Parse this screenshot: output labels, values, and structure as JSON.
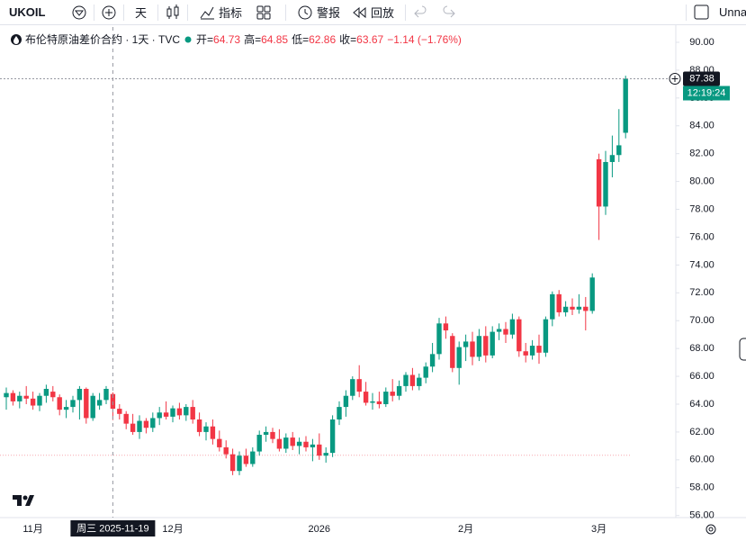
{
  "toolbar": {
    "symbol": "UKOIL",
    "interval": "天",
    "indicators": "指标",
    "alerts": "警报",
    "replay": "回放",
    "layout_name": "Unnamed"
  },
  "chart_data": {
    "type": "candlestick",
    "title": "布伦特原油差价合约 · 1天 · TVC",
    "ohlc_labels": [
      "开=",
      "高=",
      "低=",
      "收="
    ],
    "change_label": "−1.14 (−1.76%)",
    "up_color": "#089981",
    "down_color": "#f23645",
    "categories": [
      null,
      null,
      null,
      null,
      "11月",
      null,
      null,
      null,
      null,
      null,
      null,
      null,
      null,
      null,
      null,
      null,
      null,
      null,
      null,
      null,
      null,
      null,
      null,
      null,
      null,
      "12月",
      null,
      null,
      null,
      null,
      null,
      null,
      null,
      null,
      null,
      null,
      null,
      null,
      null,
      null,
      null,
      null,
      null,
      null,
      null,
      null,
      null,
      "2026",
      null,
      null,
      null,
      null,
      null,
      null,
      null,
      null,
      null,
      null,
      null,
      null,
      null,
      null,
      null,
      null,
      null,
      null,
      null,
      null,
      null,
      "2月",
      null,
      null,
      null,
      null,
      null,
      null,
      null,
      null,
      null,
      null,
      null,
      null,
      null,
      null,
      null,
      null,
      null,
      null,
      null,
      "3月",
      null,
      null,
      null,
      null
    ],
    "open": [
      64.5,
      64.8,
      64.2,
      64.6,
      64.4,
      63.9,
      64.6,
      64.9,
      64.5,
      63.6,
      63.8,
      64.3,
      65.1,
      63.0,
      63.9,
      64.3,
      64.73,
      63.67,
      63.3,
      62.6,
      62.0,
      62.8,
      62.3,
      63.0,
      63.4,
      63.1,
      63.7,
      63.2,
      63.8,
      62.9,
      62.0,
      62.4,
      61.5,
      60.9,
      60.4,
      59.2,
      60.3,
      59.7,
      60.6,
      61.8,
      62.0,
      61.5,
      60.8,
      61.6,
      61.0,
      61.3,
      60.9,
      61.1,
      60.3,
      60.5,
      62.9,
      63.8,
      64.6,
      65.8,
      64.9,
      64.1,
      64.2,
      64.0,
      64.9,
      64.6,
      65.3,
      66.1,
      65.3,
      65.9,
      66.7,
      67.6,
      69.8,
      68.9,
      66.6,
      68.1,
      68.5,
      67.4,
      68.9,
      67.5,
      69.2,
      69.4,
      69.0,
      70.1,
      67.8,
      67.5,
      68.2,
      67.7,
      70.1,
      71.9,
      70.6,
      71.0,
      70.8,
      71.0,
      70.7,
      81.6,
      78.2,
      81.4,
      81.9,
      83.5
    ],
    "high": [
      65.2,
      65.0,
      64.9,
      65.3,
      64.9,
      64.8,
      65.4,
      65.3,
      64.7,
      64.3,
      64.6,
      65.3,
      65.2,
      64.8,
      64.8,
      65.3,
      64.85,
      64.0,
      63.5,
      63.3,
      63.2,
      63.0,
      63.4,
      63.8,
      64.2,
      63.9,
      64.1,
      64.0,
      64.3,
      63.4,
      62.7,
      62.9,
      62.1,
      61.4,
      60.8,
      60.6,
      60.8,
      60.9,
      62.1,
      62.4,
      62.3,
      62.2,
      61.9,
      62.0,
      61.6,
      61.7,
      61.5,
      61.9,
      60.9,
      63.2,
      64.2,
      65.0,
      66.0,
      66.8,
      65.6,
      64.8,
      64.9,
      65.2,
      65.8,
      65.7,
      66.3,
      66.6,
      66.2,
      67.0,
      68.4,
      70.2,
      70.3,
      69.1,
      68.5,
      69.0,
      69.2,
      69.4,
      69.6,
      69.6,
      69.8,
      69.9,
      70.5,
      70.3,
      68.4,
      68.6,
      69.0,
      70.3,
      72.1,
      72.2,
      71.4,
      71.6,
      71.9,
      71.7,
      73.4,
      82.0,
      82.2,
      83.3,
      85.2,
      87.6
    ],
    "low": [
      63.6,
      63.9,
      63.7,
      64.0,
      63.6,
      63.5,
      64.1,
      64.2,
      63.2,
      63.0,
      63.4,
      62.9,
      62.6,
      62.8,
      63.6,
      64.0,
      62.86,
      62.9,
      62.2,
      61.8,
      61.5,
      61.9,
      62.0,
      62.5,
      62.9,
      62.7,
      62.9,
      62.8,
      62.6,
      61.7,
      61.4,
      61.1,
      60.6,
      60.1,
      58.9,
      58.9,
      59.5,
      59.5,
      60.3,
      61.3,
      61.2,
      60.6,
      60.5,
      60.7,
      60.4,
      60.6,
      59.9,
      60.0,
      59.8,
      60.2,
      62.5,
      63.1,
      64.3,
      64.5,
      63.9,
      63.6,
      63.7,
      63.8,
      64.2,
      64.3,
      64.9,
      65.0,
      65.0,
      65.5,
      66.3,
      67.2,
      68.7,
      66.3,
      65.4,
      67.1,
      66.8,
      67.1,
      67.0,
      67.3,
      68.6,
      68.4,
      68.7,
      67.4,
      67.0,
      67.2,
      66.9,
      67.4,
      69.6,
      70.3,
      70.3,
      70.4,
      70.5,
      69.3,
      70.5,
      75.8,
      77.6,
      80.3,
      81.4,
      83.1
    ],
    "close": [
      64.8,
      64.2,
      64.6,
      64.4,
      63.9,
      64.6,
      65.1,
      64.5,
      63.6,
      63.8,
      64.3,
      65.1,
      63.0,
      64.6,
      64.3,
      65.1,
      63.67,
      63.3,
      62.6,
      62.0,
      62.8,
      62.3,
      63.0,
      63.4,
      63.1,
      63.7,
      63.2,
      63.8,
      62.9,
      62.0,
      62.4,
      61.5,
      60.9,
      60.4,
      59.2,
      60.3,
      59.7,
      60.6,
      61.8,
      62.0,
      61.5,
      60.8,
      61.6,
      61.0,
      61.3,
      60.9,
      61.1,
      60.3,
      60.5,
      62.9,
      63.8,
      64.6,
      65.8,
      64.9,
      64.1,
      64.2,
      64.0,
      64.9,
      64.6,
      65.3,
      66.1,
      65.3,
      65.9,
      66.7,
      67.6,
      69.8,
      69.3,
      66.6,
      68.1,
      68.5,
      67.4,
      68.9,
      67.5,
      69.2,
      69.4,
      69.0,
      70.1,
      67.8,
      67.5,
      68.2,
      67.7,
      70.1,
      71.9,
      70.6,
      71.0,
      70.8,
      71.0,
      70.7,
      73.1,
      78.2,
      81.4,
      81.9,
      82.6,
      87.38
    ],
    "ylim": [
      55.85,
      91.1
    ],
    "yticks": [
      {
        "value": 56,
        "label": "56.00"
      },
      {
        "value": 58,
        "label": "58.00"
      },
      {
        "value": 60,
        "label": "60.00"
      },
      {
        "value": 62,
        "label": "62.00"
      },
      {
        "value": 64,
        "label": "64.00"
      },
      {
        "value": 66,
        "label": "66.00"
      },
      {
        "value": 68,
        "label": "68.00"
      },
      {
        "value": 70,
        "label": "70.00"
      },
      {
        "value": 72,
        "label": "72.00"
      },
      {
        "value": 74,
        "label": "74.00"
      },
      {
        "value": 76,
        "label": "76.00"
      },
      {
        "value": 78,
        "label": "78.00"
      },
      {
        "value": 80,
        "label": "80.00"
      },
      {
        "value": 82,
        "label": "82.00"
      },
      {
        "value": 84,
        "label": "84.00"
      },
      {
        "value": 86,
        "label": "86.00"
      },
      {
        "value": 88,
        "label": "88.00"
      },
      {
        "value": 90,
        "label": "90.00"
      }
    ],
    "crosshair_index": 16,
    "crosshair_date_label": "周三 2025-11-19",
    "crosshair_price": 87.38,
    "countdown": "12:19:24",
    "reference_line": 60.33
  }
}
